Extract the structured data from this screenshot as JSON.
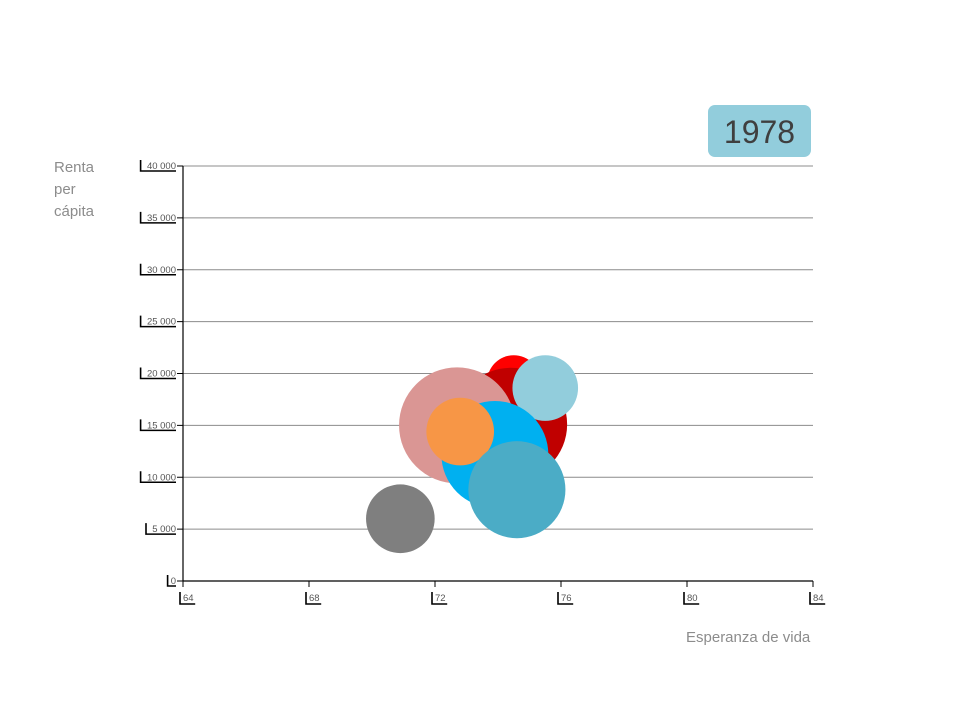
{
  "year": "1978",
  "chart_data": {
    "type": "scatter",
    "subtype": "bubble",
    "title": "",
    "xlabel": "Esperanza de vida",
    "ylabel_lines": [
      "Renta",
      "per",
      "cápita"
    ],
    "xlim": [
      64,
      84
    ],
    "ylim": [
      0,
      40000
    ],
    "x_ticks": [
      64,
      68,
      72,
      76,
      80,
      84
    ],
    "x_tick_labels": [
      "64",
      "68",
      "72",
      "76",
      "80",
      "84"
    ],
    "y_ticks": [
      0,
      5000,
      10000,
      15000,
      20000,
      25000,
      30000,
      35000,
      40000
    ],
    "y_tick_labels": [
      "0",
      "5 000",
      "10 000",
      "15 000",
      "20 000",
      "25 000",
      "30 000",
      "35 000",
      "40 000"
    ],
    "grid": "horizontal",
    "bubbles": [
      {
        "x": 74.5,
        "y": 19200,
        "size": 0.21,
        "color": "#ff0000"
      },
      {
        "x": 74.4,
        "y": 15100,
        "size": 0.95,
        "color": "#c00000"
      },
      {
        "x": 72.7,
        "y": 15000,
        "size": 1.0,
        "color": "#da9694"
      },
      {
        "x": 75.5,
        "y": 18600,
        "size": 0.32,
        "color": "#92cddc"
      },
      {
        "x": 73.9,
        "y": 12200,
        "size": 0.85,
        "color": "#00b0f0"
      },
      {
        "x": 72.8,
        "y": 14400,
        "size": 0.34,
        "color": "#f79646"
      },
      {
        "x": 74.6,
        "y": 8800,
        "size": 0.7,
        "color": "#4bacc6"
      },
      {
        "x": 70.9,
        "y": 6000,
        "size": 0.35,
        "color": "#7f7f7f"
      }
    ]
  }
}
